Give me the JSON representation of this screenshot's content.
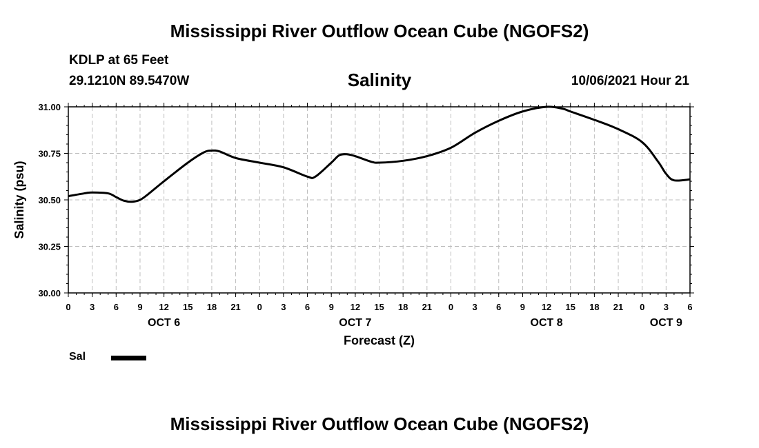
{
  "header": {
    "title": "Mississippi River Outflow Ocean Cube (NGOFS2)",
    "station": "KDLP at 65 Feet",
    "coordinates": "29.1210N  89.5470W",
    "issued": "10/06/2021 Hour 21"
  },
  "footer": {
    "title": "Mississippi River Outflow Ocean Cube (NGOFS2)"
  },
  "legend": {
    "label": "Sal"
  },
  "chart_data": {
    "type": "line",
    "title": "Salinity",
    "xlabel": "Forecast (Z)",
    "ylabel": "Salinity (psu)",
    "xlim": [
      0,
      78
    ],
    "ylim": [
      30.0,
      31.0
    ],
    "grid": true,
    "y_ticks": [
      "30.00",
      "30.25",
      "30.50",
      "30.75",
      "31.00"
    ],
    "x_ticks": [
      "0",
      "3",
      "6",
      "9",
      "12",
      "15",
      "18",
      "21",
      "0",
      "3",
      "6",
      "9",
      "12",
      "15",
      "18",
      "21",
      "0",
      "3",
      "6",
      "9",
      "12",
      "15",
      "18",
      "21",
      "0",
      "3",
      "6"
    ],
    "day_labels": [
      {
        "label": "OCT 6",
        "x": 12
      },
      {
        "label": "OCT 7",
        "x": 36
      },
      {
        "label": "OCT 8",
        "x": 60
      },
      {
        "label": "OCT 9",
        "x": 75
      }
    ],
    "series": [
      {
        "name": "Sal",
        "color": "#000000",
        "x": [
          0,
          2,
          3,
          5,
          6,
          7,
          8,
          9,
          10,
          12,
          15,
          17,
          18,
          19,
          21,
          24,
          27,
          30,
          31,
          33,
          34,
          35,
          36,
          38,
          39,
          42,
          45,
          48,
          51,
          54,
          57,
          60,
          62,
          63,
          66,
          69,
          72,
          74,
          75,
          76,
          78
        ],
        "values": [
          30.52,
          30.535,
          30.54,
          30.535,
          30.515,
          30.495,
          30.49,
          30.5,
          30.53,
          30.6,
          30.7,
          30.755,
          30.765,
          30.76,
          30.725,
          30.7,
          30.675,
          30.625,
          30.625,
          30.7,
          30.74,
          30.745,
          30.735,
          30.705,
          30.7,
          30.71,
          30.735,
          30.78,
          30.86,
          30.925,
          30.975,
          31.0,
          30.99,
          30.975,
          30.93,
          30.88,
          30.81,
          30.705,
          30.64,
          30.605,
          30.61
        ]
      }
    ]
  }
}
